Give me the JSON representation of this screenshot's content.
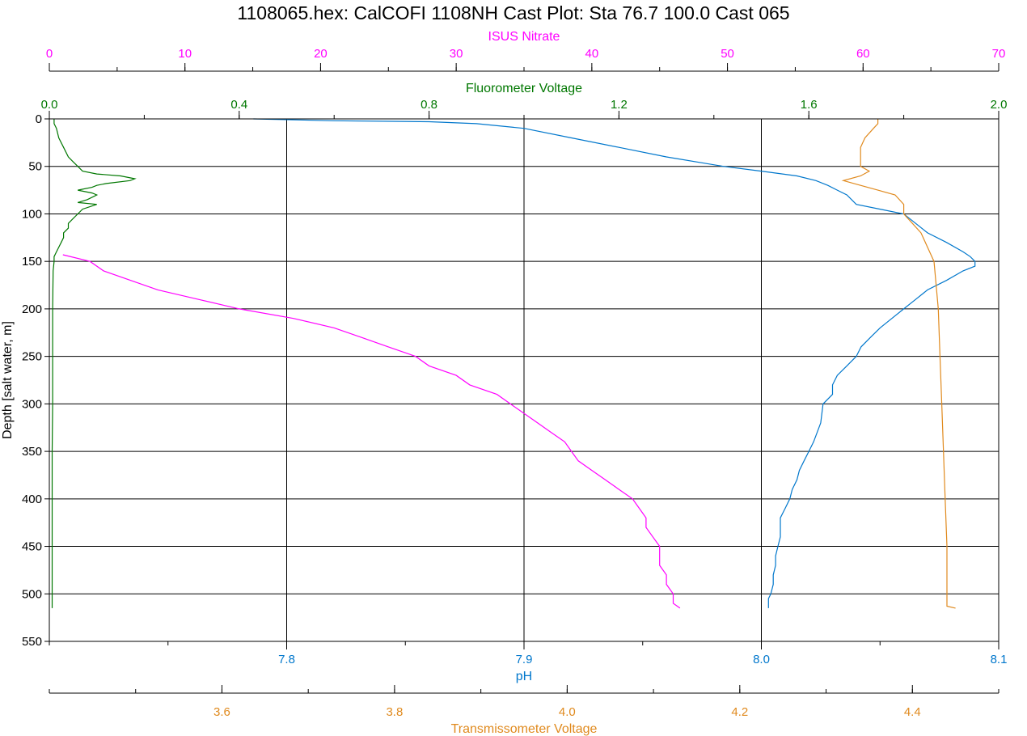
{
  "chart_data": {
    "type": "line",
    "title": "1108065.hex: CalCOFI 1108NH Cast Plot: Sta 76.7 100.0 Cast 065",
    "grid": true,
    "y_axis": {
      "label": "Depth [salt water, m]",
      "range": [
        0,
        550
      ],
      "inverted": true,
      "ticks": [
        "0",
        "50",
        "100",
        "150",
        "200",
        "250",
        "300",
        "350",
        "400",
        "450",
        "500",
        "550"
      ]
    },
    "x_axes": [
      {
        "key": "nitrate",
        "label": "ISUS Nitrate",
        "position": "top",
        "color": "#ff00ff",
        "range": [
          0,
          70
        ],
        "ticks": [
          "0",
          "10",
          "20",
          "30",
          "40",
          "50",
          "60",
          "70"
        ]
      },
      {
        "key": "fluor",
        "label": "Fluorometer Voltage",
        "position": "top",
        "color": "#007700",
        "range": [
          0,
          2.0
        ],
        "ticks": [
          "0.0",
          "0.4",
          "0.8",
          "1.2",
          "1.6",
          "2.0"
        ]
      },
      {
        "key": "ph",
        "label": "pH",
        "position": "bottom",
        "color": "#0077cc",
        "range": [
          7.7,
          8.1
        ],
        "ticks": [
          "7.8",
          "7.9",
          "8.0",
          "8.1"
        ]
      },
      {
        "key": "trans",
        "label": "Transmissometer Voltage",
        "position": "bottom",
        "color": "#e08a1e",
        "range": [
          3.4,
          4.5
        ],
        "ticks": [
          "3.6",
          "3.8",
          "4.0",
          "4.2",
          "4.4"
        ]
      }
    ],
    "series": [
      {
        "axis": "ph",
        "color": "#0077cc",
        "depth": [
          0,
          2,
          3,
          5,
          10,
          20,
          30,
          40,
          50,
          55,
          60,
          65,
          70,
          75,
          80,
          90,
          95,
          100,
          110,
          120,
          130,
          140,
          145,
          150,
          155,
          160,
          170,
          180,
          190,
          200,
          210,
          220,
          230,
          240,
          250,
          260,
          270,
          280,
          290,
          300,
          320,
          340,
          350,
          360,
          370,
          380,
          390,
          400,
          410,
          420,
          430,
          440,
          450,
          460,
          470,
          480,
          490,
          500,
          505,
          510,
          515
        ],
        "values": [
          7.786,
          7.82,
          7.86,
          7.88,
          7.9,
          7.92,
          7.94,
          7.96,
          7.984,
          8.0,
          8.015,
          8.023,
          8.028,
          8.032,
          8.036,
          8.04,
          8.05,
          8.06,
          8.065,
          8.07,
          8.078,
          8.085,
          8.088,
          8.09,
          8.09,
          8.085,
          8.078,
          8.07,
          8.065,
          8.06,
          8.055,
          8.05,
          8.046,
          8.042,
          8.04,
          8.036,
          8.032,
          8.03,
          8.03,
          8.026,
          8.025,
          8.022,
          8.02,
          8.018,
          8.016,
          8.015,
          8.013,
          8.012,
          8.01,
          8.008,
          8.008,
          8.008,
          8.007,
          8.006,
          8.006,
          8.005,
          8.005,
          8.004,
          8.003,
          8.003,
          8.003
        ]
      },
      {
        "axis": "trans",
        "color": "#e08a1e",
        "depth": [
          0,
          1,
          2,
          5,
          10,
          20,
          30,
          40,
          50,
          55,
          60,
          65,
          70,
          75,
          80,
          90,
          100,
          110,
          120,
          130,
          140,
          150,
          200,
          250,
          300,
          350,
          400,
          450,
          500,
          510,
          513,
          515
        ],
        "values": [
          4.36,
          4.36,
          4.36,
          4.36,
          4.355,
          4.345,
          4.34,
          4.34,
          4.34,
          4.35,
          4.34,
          4.32,
          4.34,
          4.36,
          4.38,
          4.39,
          4.39,
          4.4,
          4.41,
          4.415,
          4.42,
          4.425,
          4.43,
          4.432,
          4.434,
          4.436,
          4.438,
          4.44,
          4.44,
          4.44,
          4.44,
          4.45
        ]
      },
      {
        "axis": "fluor",
        "color": "#007700",
        "depth": [
          0,
          5,
          10,
          20,
          30,
          40,
          45,
          50,
          55,
          58,
          60,
          63,
          65,
          68,
          70,
          72,
          75,
          78,
          80,
          85,
          88,
          90,
          95,
          100,
          105,
          110,
          115,
          120,
          125,
          130,
          135,
          140,
          145,
          150,
          160,
          200,
          250,
          300,
          350,
          400,
          450,
          500,
          515
        ],
        "values": [
          0.01,
          0.01,
          0.015,
          0.02,
          0.03,
          0.04,
          0.05,
          0.06,
          0.07,
          0.1,
          0.15,
          0.18,
          0.17,
          0.12,
          0.1,
          0.09,
          0.06,
          0.09,
          0.1,
          0.08,
          0.06,
          0.1,
          0.07,
          0.06,
          0.05,
          0.04,
          0.04,
          0.03,
          0.03,
          0.025,
          0.02,
          0.015,
          0.01,
          0.01,
          0.008,
          0.007,
          0.007,
          0.007,
          0.006,
          0.006,
          0.006,
          0.006,
          0.006
        ]
      },
      {
        "axis": "nitrate",
        "color": "#ff00ff",
        "depth": [
          143,
          150,
          160,
          170,
          180,
          190,
          200,
          210,
          220,
          230,
          240,
          250,
          260,
          270,
          280,
          290,
          300,
          310,
          320,
          330,
          340,
          350,
          360,
          370,
          380,
          390,
          400,
          410,
          420,
          430,
          440,
          450,
          460,
          470,
          480,
          490,
          500,
          505,
          510,
          515
        ],
        "values": [
          1,
          3,
          4,
          6,
          8,
          11,
          14,
          18,
          21,
          23,
          25,
          27,
          28,
          30,
          31,
          33,
          34,
          35,
          36,
          37,
          38,
          38.5,
          39,
          40,
          41,
          42,
          43,
          43.5,
          44,
          44,
          44.5,
          45,
          45,
          45,
          45.5,
          45.5,
          46,
          46,
          46,
          46.5
        ]
      }
    ]
  }
}
